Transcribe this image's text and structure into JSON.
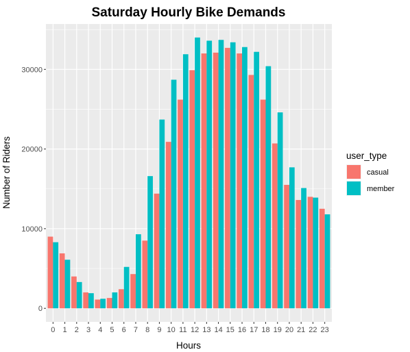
{
  "chart_data": {
    "type": "bar",
    "title": "Saturday Hourly Bike Demands",
    "xlabel": "Hours",
    "ylabel": "Number of Riders",
    "categories": [
      "0",
      "1",
      "2",
      "3",
      "4",
      "5",
      "6",
      "7",
      "8",
      "9",
      "10",
      "11",
      "12",
      "13",
      "14",
      "15",
      "16",
      "17",
      "18",
      "19",
      "20",
      "21",
      "22",
      "23"
    ],
    "series": [
      {
        "name": "casual",
        "color": "#F8766D",
        "values": [
          9000,
          6900,
          4000,
          2000,
          1100,
          1300,
          2400,
          4300,
          8500,
          14400,
          20900,
          26200,
          29900,
          32000,
          32100,
          32700,
          32000,
          29300,
          26200,
          20700,
          15500,
          13600,
          14000,
          12500
        ]
      },
      {
        "name": "member",
        "color": "#00BFC4",
        "values": [
          8300,
          6100,
          3300,
          1900,
          1200,
          2000,
          5200,
          9300,
          16600,
          23700,
          28700,
          31900,
          34000,
          33600,
          33700,
          33400,
          32800,
          32200,
          30400,
          24600,
          17700,
          15100,
          13900,
          11800
        ]
      }
    ],
    "yticks": [
      0,
      10000,
      20000,
      30000
    ],
    "ytick_labels": [
      "0",
      "10000",
      "20000",
      "30000"
    ],
    "ylim": [
      -1700,
      35700
    ],
    "legend": {
      "title": "user_type",
      "position": "right"
    },
    "grid": true,
    "panel_color": "#EBEBEB"
  }
}
